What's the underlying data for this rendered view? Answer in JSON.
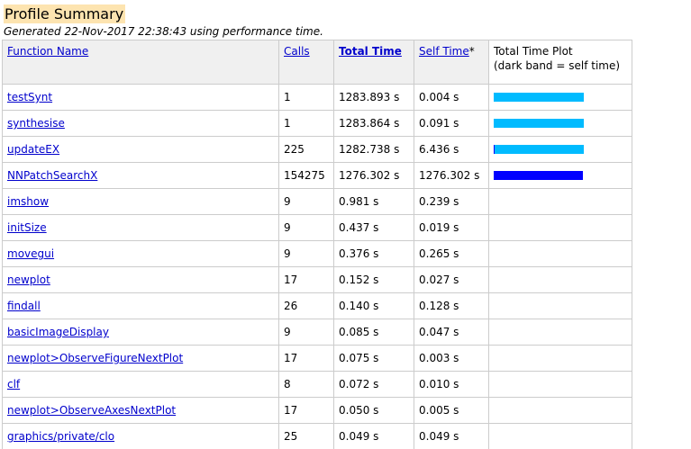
{
  "header": {
    "title": "Profile Summary",
    "generated": "Generated 22-Nov-2017 22:38:43 using performance time."
  },
  "columns": {
    "function_name": "Function Name",
    "calls": "Calls",
    "total_time": "Total Time",
    "self_time": "Self Time",
    "self_time_suffix": "*",
    "plot_line1": "Total Time Plot",
    "plot_line2": "(dark band = self time)"
  },
  "colors": {
    "title_highlight": "#fde4b0",
    "header_background": "#f0f0f0",
    "link": "#0000cc",
    "plot_total_bar": "#00bbff",
    "plot_self_band": "#0000ff"
  },
  "rows": [
    {
      "name": "testSynt",
      "calls": "1",
      "total": "1283.893 s",
      "self": "0.004 s",
      "total_frac": 1.0,
      "self_frac": 0.0
    },
    {
      "name": "synthesise",
      "calls": "1",
      "total": "1283.864 s",
      "self": "0.091 s",
      "total_frac": 1.0,
      "self_frac": 0.0
    },
    {
      "name": "updateEX",
      "calls": "225",
      "total": "1282.738 s",
      "self": "6.436 s",
      "total_frac": 0.999,
      "self_frac": 0.005
    },
    {
      "name": "NNPatchSearchX",
      "calls": "154275",
      "total": "1276.302 s",
      "self": "1276.302 s",
      "total_frac": 0.994,
      "self_frac": 0.994
    },
    {
      "name": "imshow",
      "calls": "9",
      "total": "0.981 s",
      "self": "0.239 s",
      "total_frac": 0.0008,
      "self_frac": 0.0002
    },
    {
      "name": "initSize",
      "calls": "9",
      "total": "0.437 s",
      "self": "0.019 s",
      "total_frac": 0.0003,
      "self_frac": 0.0
    },
    {
      "name": "movegui",
      "calls": "9",
      "total": "0.376 s",
      "self": "0.265 s",
      "total_frac": 0.0003,
      "self_frac": 0.0002
    },
    {
      "name": "newplot",
      "calls": "17",
      "total": "0.152 s",
      "self": "0.027 s",
      "total_frac": 0.0001,
      "self_frac": 0.0
    },
    {
      "name": "findall",
      "calls": "26",
      "total": "0.140 s",
      "self": "0.128 s",
      "total_frac": 0.0001,
      "self_frac": 0.0001
    },
    {
      "name": "basicImageDisplay",
      "calls": "9",
      "total": "0.085 s",
      "self": "0.047 s",
      "total_frac": 0.0,
      "self_frac": 0.0
    },
    {
      "name": "newplot>ObserveFigureNextPlot",
      "calls": "17",
      "total": "0.075 s",
      "self": "0.003 s",
      "total_frac": 0.0,
      "self_frac": 0.0
    },
    {
      "name": "clf",
      "calls": "8",
      "total": "0.072 s",
      "self": "0.010 s",
      "total_frac": 0.0,
      "self_frac": 0.0
    },
    {
      "name": "newplot>ObserveAxesNextPlot",
      "calls": "17",
      "total": "0.050 s",
      "self": "0.005 s",
      "total_frac": 0.0,
      "self_frac": 0.0
    },
    {
      "name": "graphics/private/clo",
      "calls": "25",
      "total": "0.049 s",
      "self": "0.049 s",
      "total_frac": 0.0,
      "self_frac": 0.0
    }
  ]
}
